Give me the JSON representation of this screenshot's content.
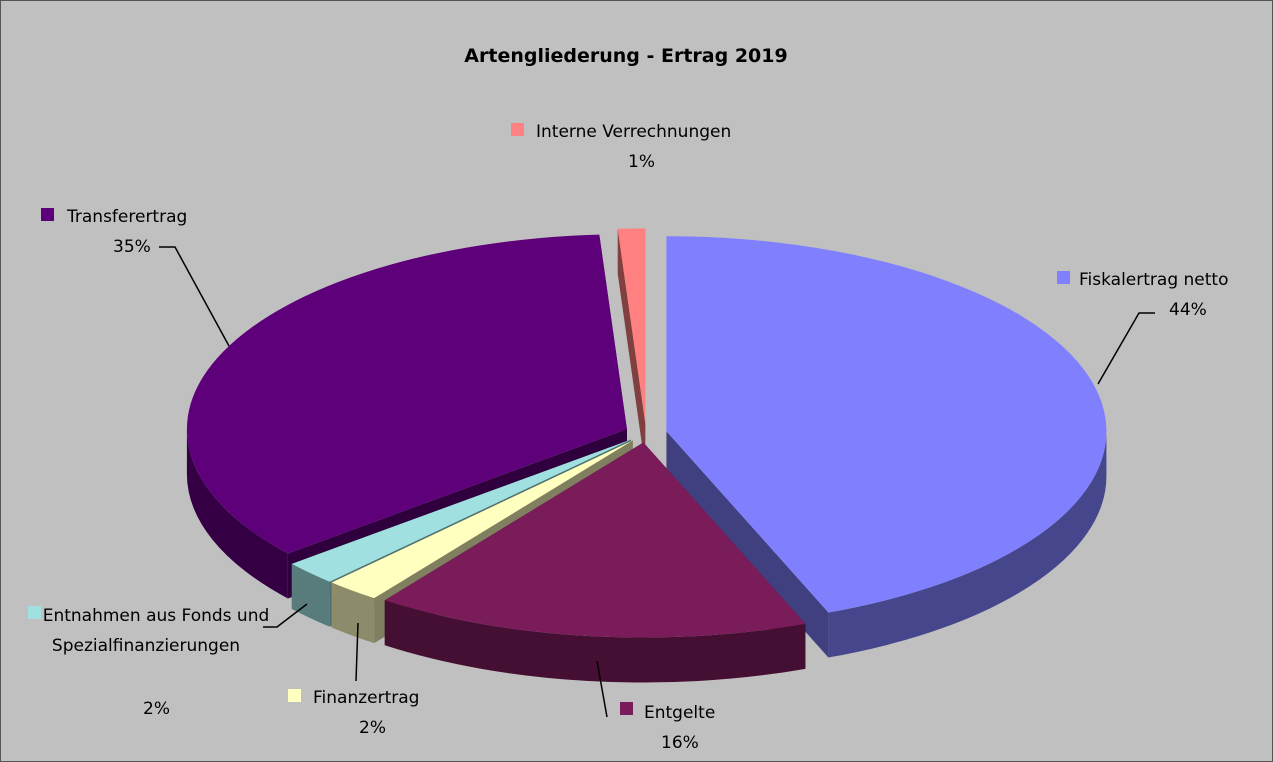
{
  "chart_data": {
    "type": "pie",
    "title": "Artengliederung - Ertrag 2019",
    "categories": [
      "Fiskalertrag netto",
      "Entgelte",
      "Finanzertrag",
      "Entnahmen aus Fonds und Spezialfinanzierungen",
      "Transferertrag",
      "Interne Verrechnungen"
    ],
    "values": [
      44,
      16,
      2,
      2,
      35,
      1
    ],
    "value_labels": [
      "44%",
      "16%",
      "2%",
      "2%",
      "35%",
      "1%"
    ],
    "colors": [
      "#8080ff",
      "#7b1c5a",
      "#ffffc0",
      "#a0e0e0",
      "#5e0079",
      "#ff8080"
    ]
  }
}
